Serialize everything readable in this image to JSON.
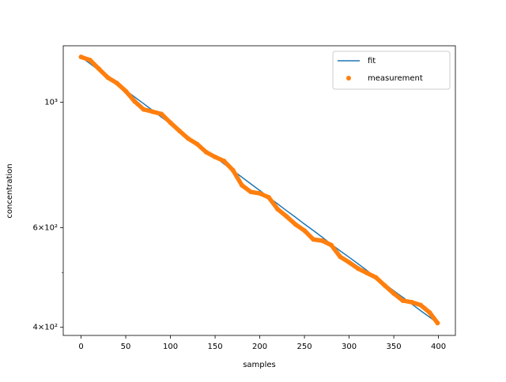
{
  "chart_data": {
    "type": "line",
    "x_label": "samples",
    "y_label": "concentration",
    "x": [
      0,
      10,
      20,
      30,
      40,
      50,
      60,
      70,
      80,
      90,
      100,
      110,
      120,
      130,
      140,
      150,
      160,
      170,
      180,
      190,
      200,
      210,
      220,
      230,
      240,
      250,
      260,
      270,
      280,
      290,
      300,
      310,
      320,
      330,
      340,
      350,
      360,
      370,
      380,
      390,
      399
    ],
    "series": [
      {
        "name": "fit",
        "color": "#1f77b4",
        "style": "line",
        "values": [
          1202,
          1170,
          1138,
          1108,
          1078,
          1049,
          1021,
          994,
          967,
          941,
          916,
          891,
          867,
          844,
          822,
          800,
          778,
          757,
          737,
          717,
          698,
          679,
          661,
          643,
          626,
          609,
          593,
          577,
          561,
          546,
          532,
          518,
          504,
          490,
          477,
          464,
          452,
          440,
          428,
          417,
          407
        ]
      },
      {
        "name": "measurement",
        "color": "#ff7f0e",
        "style": "markers",
        "values": [
          1202,
          1187,
          1145,
          1105,
          1081,
          1046,
          1003,
          971,
          962,
          953,
          920,
          890,
          862,
          843,
          816,
          800,
          787,
          758,
          713,
          694,
          690,
          679,
          647,
          628,
          608,
          593,
          572,
          569,
          559,
          533,
          521,
          508,
          499,
          490,
          474,
          459,
          446,
          443,
          438,
          425,
          407
        ]
      }
    ],
    "xlim": [
      -19.95,
      418.95
    ],
    "xticks": [
      0,
      50,
      100,
      150,
      200,
      250,
      300,
      350,
      400
    ],
    "ylim": [
      387,
      1258
    ],
    "log_y": true,
    "yticks": [
      {
        "value": 400,
        "label": "4×10²"
      },
      {
        "value": 600,
        "label": "6×10²"
      },
      {
        "value": 1000,
        "label": "10³"
      }
    ],
    "yminorticks": [
      500
    ],
    "legend": "upper right"
  }
}
